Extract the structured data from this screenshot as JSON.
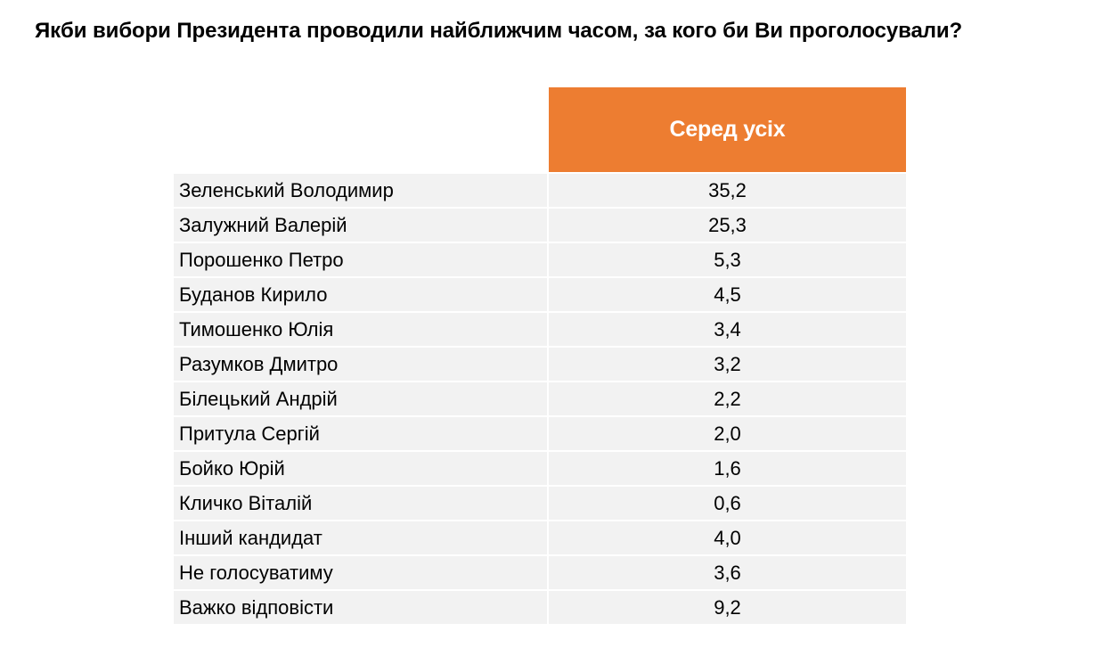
{
  "colors": {
    "header_bg": "#ED7D31",
    "row_bg": "#F2F2F2",
    "header_text": "#FFFFFF"
  },
  "chart_data": {
    "type": "table",
    "title": "Якби вибори Президента проводили найближчим часом, за кого би Ви проголосували?",
    "column_header": "Серед усіх",
    "rows": [
      {
        "label": "Зеленський Володимир",
        "value": "35,2"
      },
      {
        "label": "Залужний Валерій",
        "value": "25,3"
      },
      {
        "label": "Порошенко Петро",
        "value": "5,3"
      },
      {
        "label": "Буданов Кирило",
        "value": "4,5"
      },
      {
        "label": "Тимошенко Юлія",
        "value": "3,4"
      },
      {
        "label": "Разумков Дмитро",
        "value": "3,2"
      },
      {
        "label": "Білецький Андрій",
        "value": "2,2"
      },
      {
        "label": "Притула Сергій",
        "value": "2,0"
      },
      {
        "label": "Бойко Юрій",
        "value": "1,6"
      },
      {
        "label": "Кличко Віталій",
        "value": "0,6"
      },
      {
        "label": "Інший кандидат",
        "value": "4,0"
      },
      {
        "label": "Не голосуватиму",
        "value": "3,6"
      },
      {
        "label": "Важко відповісти",
        "value": "9,2"
      }
    ]
  }
}
